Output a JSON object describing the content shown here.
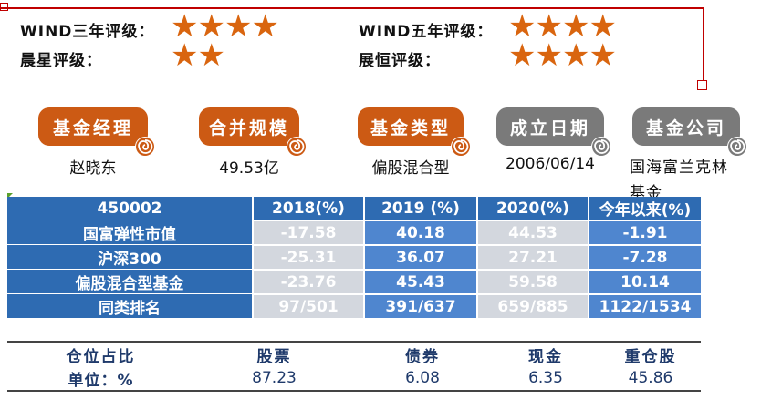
{
  "ratings": [
    {
      "label": "WIND三年评级：",
      "stars": "★★★★"
    },
    {
      "label": "晨星评级：",
      "stars": "★★"
    },
    {
      "label": "WIND五年评级：",
      "stars": "★★★★"
    },
    {
      "label": "展恒评级：",
      "stars": "★★★★"
    }
  ],
  "info": [
    {
      "label": "基金经理",
      "value": "赵晓东",
      "color": "#cc5a14"
    },
    {
      "label": "合并规模",
      "value": "49.53亿",
      "color": "#cc5a14"
    },
    {
      "label": "基金类型",
      "value": "偏股混合型",
      "color": "#cc5a14"
    },
    {
      "label": "成立日期",
      "value": "2006/06/14",
      "color": "#7a7a7a"
    },
    {
      "label": "基金公司",
      "value": "国海富兰克林基金",
      "color": "#7a7a7a"
    }
  ],
  "performance": {
    "headers": [
      "450002",
      "2018(%)",
      "2019 (%)",
      "2020(%)",
      "今年以来(%)"
    ],
    "rows": [
      [
        "国富弹性市值",
        "-17.58",
        "40.18",
        "44.53",
        "-1.91"
      ],
      [
        "沪深300",
        "-25.31",
        "36.07",
        "27.21",
        "-7.28"
      ],
      [
        "偏股混合型基金",
        "-23.76",
        "45.43",
        "59.58",
        "10.14"
      ],
      [
        "同类排名",
        "97/501",
        "391/637",
        "659/885",
        "1122/1534"
      ]
    ]
  },
  "allocation": {
    "headers": [
      "仓位占比",
      "股票",
      "债券",
      "现金",
      "重仓股"
    ],
    "values": [
      "单位：%",
      "87.23",
      "6.08",
      "6.35",
      "45.86"
    ]
  }
}
